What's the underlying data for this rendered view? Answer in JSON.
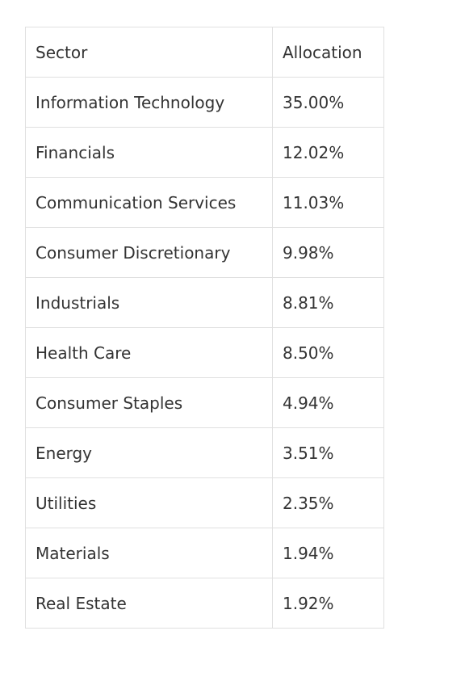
{
  "table": {
    "header": [
      "Sector",
      "Allocation"
    ],
    "rows": [
      [
        "Information Technology",
        "35.00%"
      ],
      [
        "Financials",
        "12.02%"
      ],
      [
        "Communication Services",
        "11.03%"
      ],
      [
        "Consumer Discretionary",
        "9.98%"
      ],
      [
        "Industrials",
        "8.81%"
      ],
      [
        "Health Care",
        "8.50%"
      ],
      [
        "Consumer Staples",
        "4.94%"
      ],
      [
        "Energy",
        "3.51%"
      ],
      [
        "Utilities",
        "2.35%"
      ],
      [
        "Materials",
        "1.94%"
      ],
      [
        "Real Estate",
        "1.92%"
      ]
    ]
  }
}
